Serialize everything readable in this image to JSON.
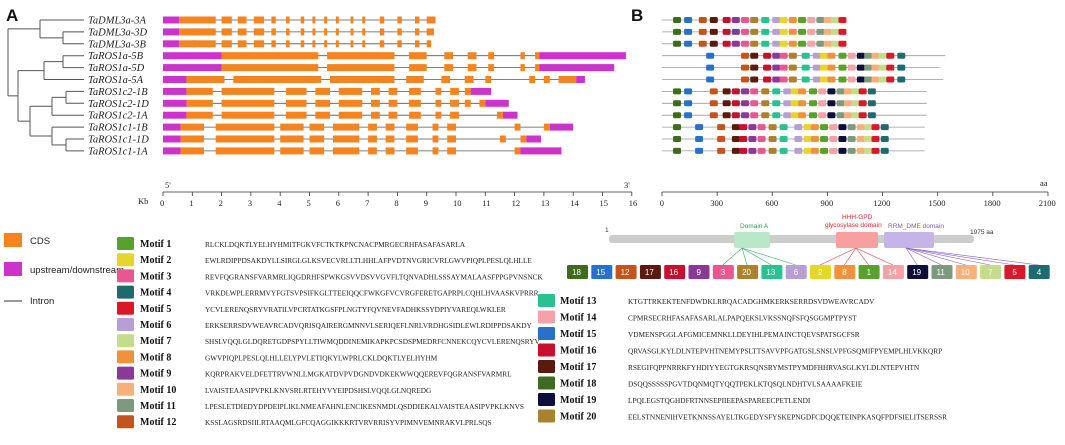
{
  "panels": {
    "a": "A",
    "b": "B"
  },
  "genes": [
    "TaDML3a-3A",
    "TaDML3a-3D",
    "TaDML3a-3B",
    "TaROS1a-5B",
    "TaROS1a-5D",
    "TaROS1a-5A",
    "TaROS1c2-1B",
    "TaROS1c2-1D",
    "TaROS1c2-1A",
    "TaROS1c1-1B",
    "TaROS1c1-1D",
    "TaROS1c1-1A"
  ],
  "gene_lengths_kb": [
    9.3,
    9.2,
    9.1,
    15.8,
    15.4,
    14.4,
    11.2,
    11.8,
    12.1,
    14.0,
    12.9,
    13.6
  ],
  "protein_lengths_aa": [
    1000,
    1000,
    1000,
    1540,
    1510,
    1530,
    1440,
    1440,
    1440,
    1430,
    1430,
    1430
  ],
  "axis_a": {
    "unit": "Kb",
    "ticks": [
      "0",
      "1",
      "2",
      "3",
      "4",
      "5",
      "6",
      "7",
      "8",
      "9",
      "10",
      "11",
      "12",
      "13",
      "14",
      "15",
      "16"
    ],
    "start_mark": "5'",
    "end_mark": "3'"
  },
  "axis_b": {
    "unit": "aa",
    "ticks": [
      "0",
      "300",
      "600",
      "900",
      "1200",
      "1500",
      "1800",
      "2100"
    ]
  },
  "legend": {
    "cds": "CDS",
    "utr": "upstream/downstream",
    "intron": "Intron"
  },
  "colors": {
    "cds": "#f5841f",
    "utr": "#cc33cc",
    "intron": "#555555",
    "domain_a": "#b8e8c8",
    "hhh": "#f8a0a0",
    "rrm": "#c4b4e8",
    "backbone": "#cccccc"
  },
  "domain_diagram": {
    "start": "1",
    "end": "1975 aa",
    "domain_a": "Domain A",
    "hhh": "HHH-GPD glycosylase domain",
    "rrm": "RRM_DME domain",
    "order": [
      "18",
      "15",
      "12",
      "17",
      "16",
      "9",
      "3",
      "20",
      "13",
      "6",
      "2",
      "8",
      "1",
      "14",
      "19",
      "11",
      "10",
      "7",
      "5",
      "4"
    ]
  },
  "motifs": [
    {
      "name": "Motif 1",
      "color": "#5aa02c",
      "seq": "RLCKLDQKTLYELHYHMITFGKVFCTKTKPNCNACPMRGECRHFASAFASARLA"
    },
    {
      "name": "Motif 2",
      "color": "#e6d62b",
      "seq": "EWLRDIPPDSAKDYLLSIRGLGLKSVECVRLLTLHHLAFPVDTNVGRICVRLGWVPIQPLPESLQLHLLE"
    },
    {
      "name": "Motif 3",
      "color": "#e8578f",
      "seq": "REVFQGRANSFVARMRLIQGDRHFSPWKGSVVDSVVGVFLTQNVADHLSSSAYMALAASFPPGPVNSNCK"
    },
    {
      "name": "Motif 4",
      "color": "#1e6b6e",
      "seq": "VRKDLWPLERRMVYFGTSVPSIFKGLTTEEIQQCFWKGFVCVRGFERETGAPRPLCQHLHVAASKVPRRR"
    },
    {
      "name": "Motif 5",
      "color": "#d9182a",
      "seq": "YCVLERENQSRYVRATILVPCRTATKGSFPLNGTYFQVNEVFADHKSSYDPIYVAREQLWKLER"
    },
    {
      "name": "Motif 6",
      "color": "#b79fd6",
      "seq": "ERKSERRSDVWEAVRCADVQRISQAIRERGMNNVLSERIQEFLNRLVRDHGSIDLEWLRDIPPDSAKDY"
    },
    {
      "name": "Motif 7",
      "color": "#c5dc8a",
      "seq": "SHSLVQQLGLDQRETGDPSPYLLTIWMQDDINEMIKAPKPCSDSPMEDRFCNNEKCQYCVLERENQSRYV"
    },
    {
      "name": "Motif 8",
      "color": "#f0923a",
      "seq": "GWVPIQPLPESLQLHLLELYPVLETIQKYLWPRLCKLDQKTLYELHYHM"
    },
    {
      "name": "Motif 9",
      "color": "#8a3a96",
      "seq": "KQRPRAKVELDFETTRVWNLLMGKATDVPVDGNDVDKEKWWQQEREVFQGRANSFVARMRL"
    },
    {
      "name": "Motif 10",
      "color": "#f7b07a",
      "seq": "LVAISTEAASIPVPKLKNVSRLRTEHYVYEIPDSHSLVQQLGLNQREDG"
    },
    {
      "name": "Motif 11",
      "color": "#7e9a7e",
      "seq": "LPESLETDIEDYDPDEIPLIKLNMEAFAHNLENCIKESNMDLQSDDIEKALVAISTEAASIPVPKLKNVS"
    },
    {
      "name": "Motif 12",
      "color": "#c2541c",
      "seq": "KSSLAGSRDSIILRTAAQMLGFCQAGGIKKKRTVRVRRISYVPIMNVEMNRAKVLPRLSQS"
    },
    {
      "name": "Motif 13",
      "color": "#27c28f",
      "seq": "KTGTTRKEKTENFDWDKLRRQACADGHMKERKSERRDSVDWEAVRCADV"
    },
    {
      "name": "Motif 14",
      "color": "#f4a1a8",
      "seq": "CPMRSECRHFASAFASARLALPAPQEKSLVKSSNQFSFQSGGMPTPYST"
    },
    {
      "name": "Motif 15",
      "color": "#2a6fc9",
      "seq": "VDMENSPGGLAFGMICEMNKLLDEYIHLPEMAINCTQEVSPATSGCFSR"
    },
    {
      "name": "Motif 16",
      "color": "#c8102e",
      "seq": "QRVASGLKYLDLNTEPVHTNEMYPSLTTSAVVPFGATGSLSNSLVPFGSQMIFPYEMPLHLVKKQRP"
    },
    {
      "name": "Motif 17",
      "color": "#5a1a0e",
      "seq": "RSEGIFQPPNRRKFYHDIYYEGTGKRSQNSRYMSTPYMDFHHRVASGLKYLDLNTEPVHTN"
    },
    {
      "name": "Motif 18",
      "color": "#3f6b1f",
      "seq": "DSQQSSSSSPGVTDQNMQTYQQTPEKLKTQSQLNDHTVLSAAAAFKEIE"
    },
    {
      "name": "Motif 19",
      "color": "#0d0f3a",
      "seq": "LPQLEGSTQGHDFRTNNSEPIIEEPASPAREECPETLENDI"
    },
    {
      "name": "Motif 20",
      "color": "#a9812f",
      "seq": "EELSTNNENIHVETKNNSSAYELTKGEDYSFYSKEPNGDFCDQQETEINPKASQFPDFSIELITSERSSR"
    }
  ]
}
